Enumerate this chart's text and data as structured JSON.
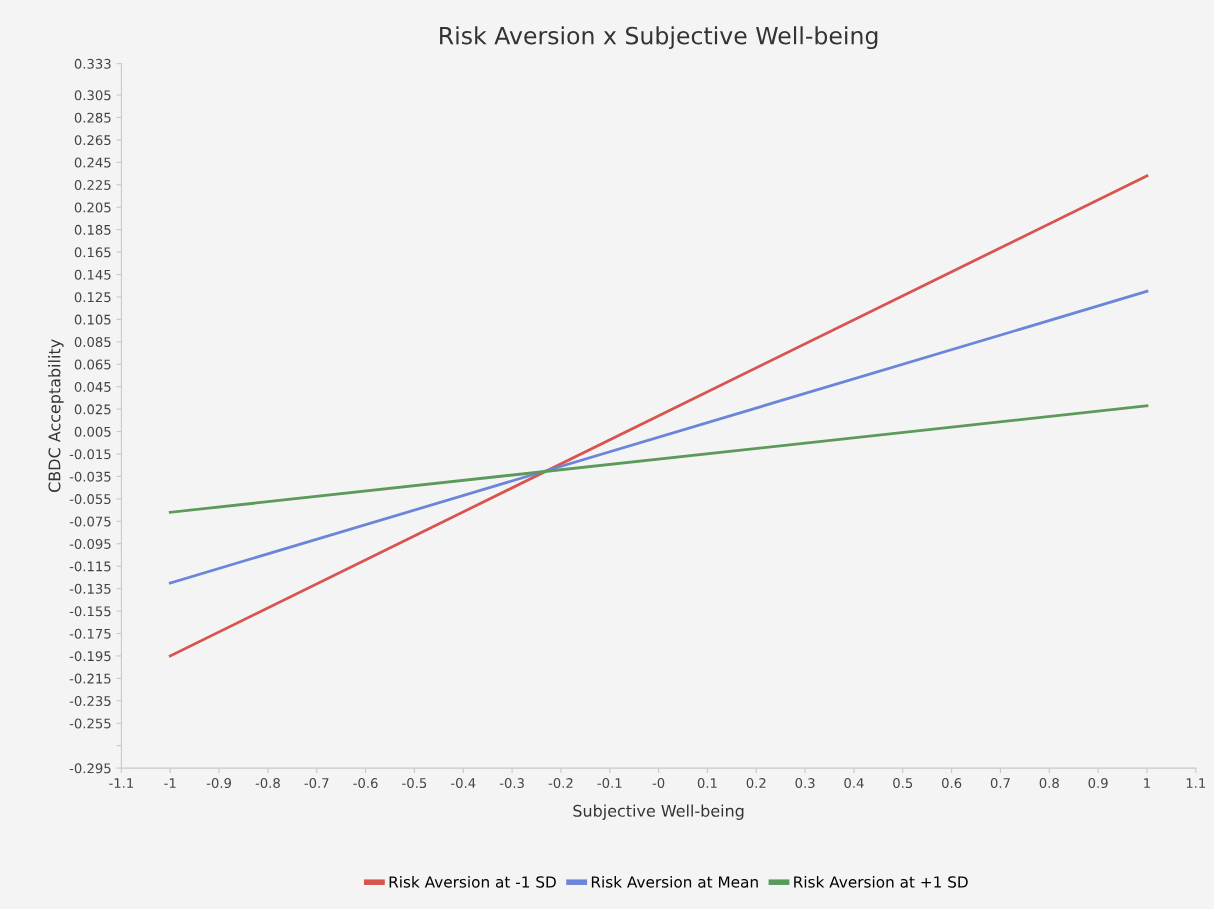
{
  "chart_data": {
    "type": "line",
    "title": "Risk Aversion x Subjective Well-being",
    "xlabel": "Subjective Well-being",
    "ylabel": "CBDC Acceptability",
    "x": [
      -1,
      1
    ],
    "series": [
      {
        "name": "Risk Aversion at -1 SD",
        "color": "#d9534f",
        "values": [
          -0.195,
          0.233
        ]
      },
      {
        "name": "Risk Aversion at Mean",
        "color": "#6b85d9",
        "values": [
          -0.13,
          0.13
        ]
      },
      {
        "name": "Risk Aversion at +1 SD",
        "color": "#5b9a5b",
        "values": [
          -0.067,
          0.028
        ]
      }
    ],
    "xlim": [
      -1.1,
      1.1
    ],
    "xticks": [
      -1.1,
      -1,
      -0.9,
      -0.8,
      -0.7,
      -0.6,
      -0.5,
      -0.4,
      -0.3,
      -0.2,
      -0.1,
      {
        "value": 0,
        "label": "-0"
      },
      0.1,
      0.2,
      0.3,
      0.4,
      0.5,
      0.6,
      0.7,
      0.8,
      0.9,
      1,
      1.1
    ],
    "ylim": [
      -0.295,
      0.333
    ],
    "yticks": [
      -0.295,
      {
        "value": -0.275,
        "label": null
      },
      -0.255,
      -0.235,
      -0.215,
      -0.195,
      -0.175,
      -0.155,
      -0.135,
      -0.115,
      -0.095,
      -0.075,
      -0.055,
      -0.035,
      -0.015,
      0.005,
      0.025,
      0.045,
      0.065,
      0.085,
      0.105,
      0.125,
      0.145,
      0.165,
      0.185,
      0.205,
      0.225,
      0.245,
      0.265,
      0.285,
      0.305,
      0.333
    ],
    "grid": false,
    "legend": "bottom",
    "marker": "none",
    "line_style": "solid"
  }
}
